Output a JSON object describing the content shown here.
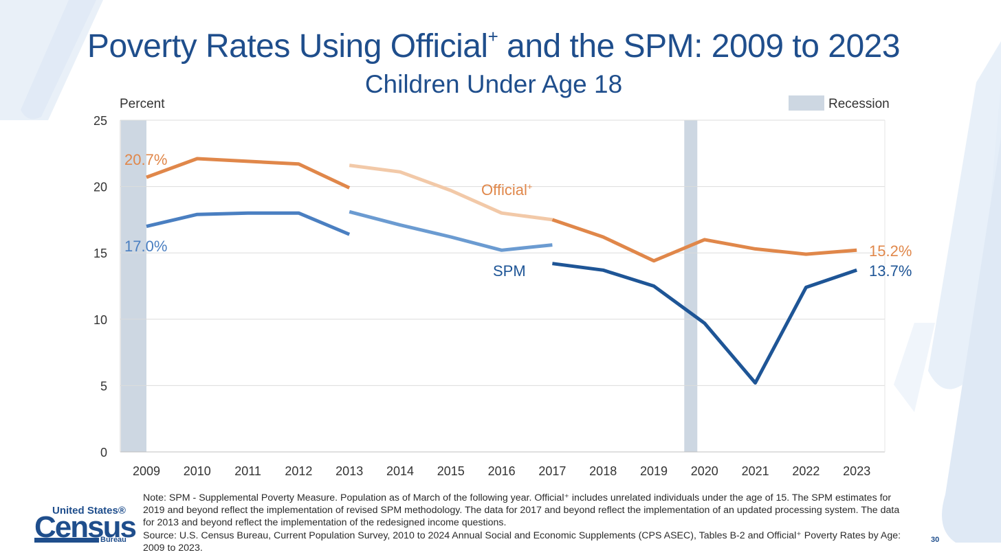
{
  "slide": {
    "title_main": "Poverty Rates Using Official",
    "title_sup": "+",
    "title_rest": " and the SPM: 2009 to 2023",
    "subtitle": "Children Under Age 18",
    "notes": [
      "Note: SPM - Supplemental Poverty Measure. Population as of March of the following year. Official⁺ includes unrelated individuals under the age of 15. The SPM estimates for 2019 and beyond reflect the implementation of revised SPM methodology. The data for 2017 and beyond reflect the implementation of an updated processing system. The data for 2013 and beyond reflect the implementation of the redesigned income questions.",
      "Source: U.S. Census Bureau, Current Population Survey, 2010 to 2024 Annual Social and Economic Supplements (CPS ASEC), Tables B-2 and Official⁺ Poverty Rates by Age: 2009 to 2023."
    ],
    "logo": {
      "line1": "United States®",
      "line2": "Census",
      "line3": "Bureau"
    },
    "page_number": "30"
  },
  "chart_data": {
    "type": "line",
    "ylabel": "Percent",
    "ylim": [
      0,
      25
    ],
    "yticks": [
      0,
      5,
      10,
      15,
      20,
      25
    ],
    "categories": [
      "2009",
      "2010",
      "2011",
      "2012",
      "2013",
      "2014",
      "2015",
      "2016",
      "2017",
      "2018",
      "2019",
      "2020",
      "2021",
      "2022",
      "2023"
    ],
    "grid": true,
    "legend": {
      "label": "Recession",
      "position": "top-right"
    },
    "recessions": [
      [
        "2009",
        "2009"
      ],
      [
        "2019.6",
        "2019.85"
      ]
    ],
    "series": [
      {
        "name": "Official⁺",
        "color": "#e0874a",
        "light_color": "#f2c9a8",
        "segments": [
          {
            "style": "normal",
            "points": [
              [
                "2009",
                20.7
              ],
              [
                "2010",
                22.1
              ],
              [
                "2011",
                21.9
              ],
              [
                "2012",
                21.7
              ],
              [
                "2013",
                19.9
              ]
            ]
          },
          {
            "style": "light",
            "points": [
              [
                "2013",
                21.6
              ],
              [
                "2014",
                21.1
              ],
              [
                "2015",
                19.7
              ],
              [
                "2016",
                18.0
              ],
              [
                "2017",
                17.5
              ]
            ]
          },
          {
            "style": "normal",
            "points": [
              [
                "2017",
                17.5
              ],
              [
                "2018",
                16.2
              ],
              [
                "2019",
                14.4
              ],
              [
                "2020",
                16.0
              ],
              [
                "2021",
                15.3
              ],
              [
                "2022",
                14.9
              ],
              [
                "2023",
                15.2
              ]
            ]
          }
        ],
        "start_label": "20.7%",
        "end_label": "15.2%",
        "series_label": "Official",
        "series_label_sup": "+"
      },
      {
        "name": "SPM",
        "color": "#4a7fc1",
        "light_color": "#6b9bd1",
        "dark_color": "#1e5596",
        "segments": [
          {
            "style": "normal",
            "points": [
              [
                "2009",
                17.0
              ],
              [
                "2010",
                17.9
              ],
              [
                "2011",
                18.0
              ],
              [
                "2012",
                18.0
              ],
              [
                "2013",
                16.4
              ]
            ]
          },
          {
            "style": "light",
            "points": [
              [
                "2013",
                18.1
              ],
              [
                "2014",
                17.1
              ],
              [
                "2015",
                16.2
              ],
              [
                "2016",
                15.2
              ],
              [
                "2017",
                15.6
              ]
            ]
          },
          {
            "style": "dark",
            "points": [
              [
                "2017",
                14.2
              ],
              [
                "2018",
                13.7
              ],
              [
                "2019",
                12.5
              ],
              [
                "2020",
                9.7
              ],
              [
                "2021",
                5.2
              ],
              [
                "2022",
                12.4
              ],
              [
                "2023",
                13.7
              ]
            ]
          }
        ],
        "start_label": "17.0%",
        "end_label": "13.7%",
        "series_label": "SPM"
      }
    ]
  }
}
